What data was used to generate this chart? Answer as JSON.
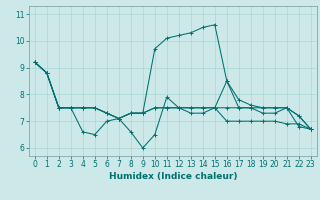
{
  "xlabel": "Humidex (Indice chaleur)",
  "bg_color": "#cce8e8",
  "grid_color": "#aad4d4",
  "line_color": "#007070",
  "xlim": [
    -0.5,
    23.5
  ],
  "ylim": [
    5.7,
    11.3
  ],
  "xticks": [
    0,
    1,
    2,
    3,
    4,
    5,
    6,
    7,
    8,
    9,
    10,
    11,
    12,
    13,
    14,
    15,
    16,
    17,
    18,
    19,
    20,
    21,
    22,
    23
  ],
  "yticks": [
    6,
    7,
    8,
    9,
    10,
    11
  ],
  "series": [
    [
      9.2,
      8.8,
      7.5,
      7.5,
      6.6,
      6.5,
      7.0,
      7.1,
      6.6,
      6.0,
      6.5,
      7.9,
      7.5,
      7.3,
      7.3,
      7.5,
      8.5,
      7.5,
      7.5,
      7.3,
      7.3,
      7.5,
      6.8,
      6.7
    ],
    [
      9.2,
      8.8,
      7.5,
      7.5,
      7.5,
      7.5,
      7.3,
      7.1,
      7.3,
      7.3,
      9.7,
      10.1,
      10.2,
      10.3,
      10.5,
      10.6,
      8.5,
      7.8,
      7.6,
      7.5,
      7.5,
      7.5,
      7.2,
      6.7
    ],
    [
      9.2,
      8.8,
      7.5,
      7.5,
      7.5,
      7.5,
      7.3,
      7.1,
      7.3,
      7.3,
      7.5,
      7.5,
      7.5,
      7.5,
      7.5,
      7.5,
      7.5,
      7.5,
      7.5,
      7.5,
      7.5,
      7.5,
      7.2,
      6.7
    ],
    [
      9.2,
      8.8,
      7.5,
      7.5,
      7.5,
      7.5,
      7.3,
      7.1,
      7.3,
      7.3,
      7.5,
      7.5,
      7.5,
      7.5,
      7.5,
      7.5,
      7.0,
      7.0,
      7.0,
      7.0,
      7.0,
      6.9,
      6.9,
      6.7
    ]
  ],
  "figsize": [
    3.2,
    2.0
  ],
  "dpi": 100,
  "tick_fontsize": 5.5,
  "xlabel_fontsize": 6.5,
  "linewidth": 0.75,
  "markersize": 2.5
}
